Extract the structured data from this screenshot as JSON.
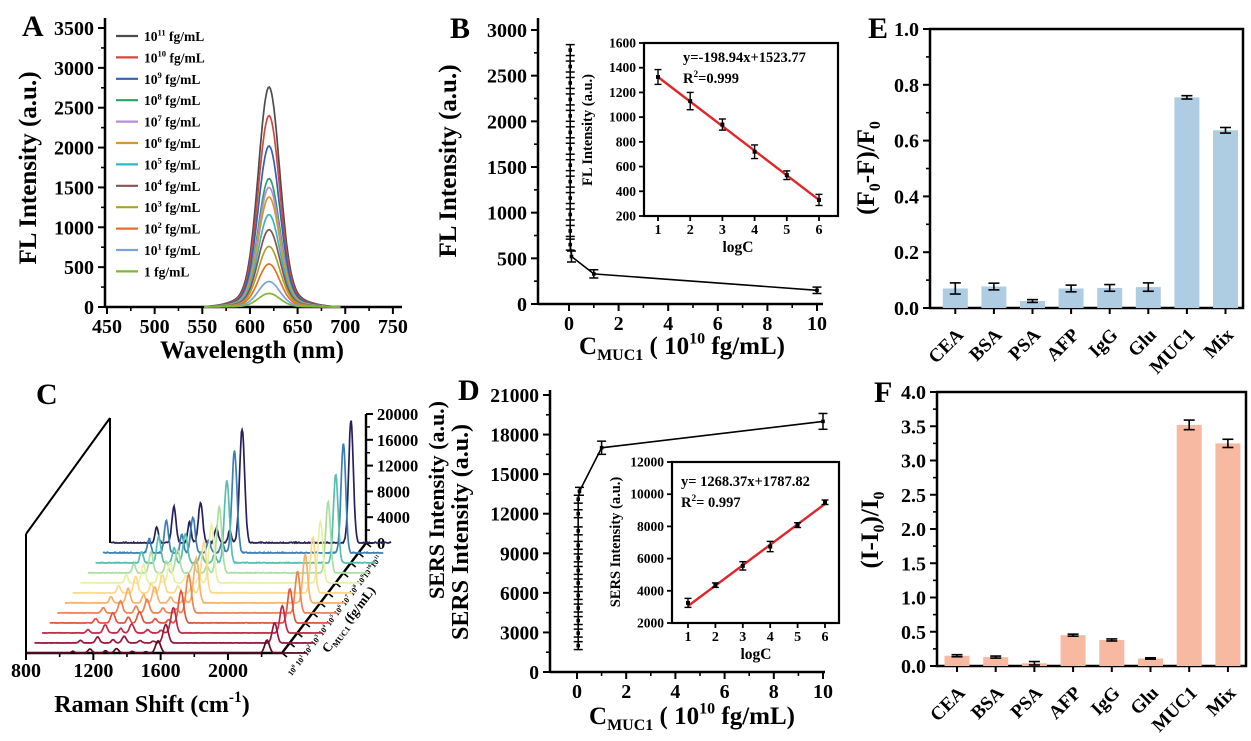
{
  "figure": {
    "background": "#ffffff",
    "text_color": "#000000"
  },
  "chart_data": [
    {
      "panel": "A",
      "type": "line",
      "xlabel": "Wavelength (nm)",
      "ylabel": "FL Intensity (a.u.)",
      "xlim": [
        450,
        750
      ],
      "xticks": [
        450,
        500,
        550,
        600,
        650,
        700,
        750
      ],
      "ylim": [
        0,
        3500
      ],
      "yticks": [
        0,
        500,
        1000,
        1500,
        2000,
        2500,
        3000,
        3500
      ],
      "peak_center_nm": 620,
      "legend_position": "upper-left",
      "series": [
        {
          "label": "10^{11} fg/mL",
          "color": "#4d4d4d",
          "peak": 2760
        },
        {
          "label": "10^{10} fg/mL",
          "color": "#d6453e",
          "peak": 2400
        },
        {
          "label": "10^{9} fg/mL",
          "color": "#3160b5",
          "peak": 2020
        },
        {
          "label": "10^{8} fg/mL",
          "color": "#2f9e68",
          "peak": 1610
        },
        {
          "label": "10^{7} fg/mL",
          "color": "#b48ede",
          "peak": 1500
        },
        {
          "label": "10^{6} fg/mL",
          "color": "#d9962b",
          "peak": 1380
        },
        {
          "label": "10^{5} fg/mL",
          "color": "#30b8c9",
          "peak": 1160
        },
        {
          "label": "10^{4} fg/mL",
          "color": "#8a5052",
          "peak": 970
        },
        {
          "label": "10^{3} fg/mL",
          "color": "#a8a32b",
          "peak": 760
        },
        {
          "label": "10^{2} fg/mL",
          "color": "#e2712d",
          "peak": 540
        },
        {
          "label": "10^{1} fg/mL",
          "color": "#7ba3d8",
          "peak": 320
        },
        {
          "label": "1 fg/mL",
          "color": "#7cb836",
          "peak": 170
        }
      ]
    },
    {
      "panel": "B",
      "type": "scatter-line",
      "xlabel": "C_{MUC1} ( 10^{10} fg/mL)",
      "ylabel": "FL Intensity (a.u.)",
      "xlim": [
        0,
        10
      ],
      "xticks": [
        0,
        2,
        4,
        6,
        8,
        10
      ],
      "ylim": [
        0,
        3000
      ],
      "yticks": [
        0,
        500,
        1000,
        1500,
        2000,
        2500,
        3000
      ],
      "line_color": "#000000",
      "points": [
        [
          0.05,
          2780
        ],
        [
          0.05,
          2600
        ],
        [
          0.05,
          2420
        ],
        [
          0.05,
          2240
        ],
        [
          0.05,
          2060
        ],
        [
          0.05,
          1880
        ],
        [
          0.05,
          1700
        ],
        [
          0.05,
          1520
        ],
        [
          0.05,
          1340
        ],
        [
          0.05,
          1160
        ],
        [
          0.05,
          980
        ],
        [
          0.05,
          800
        ],
        [
          0.05,
          650
        ],
        [
          0.1,
          520
        ],
        [
          1,
          330
        ],
        [
          10,
          150
        ]
      ],
      "yerr": [
        60,
        60,
        60,
        60,
        60,
        60,
        60,
        60,
        60,
        60,
        60,
        60,
        60,
        60,
        45,
        35
      ],
      "inset": {
        "equation": "y=-198.94x+1523.77",
        "r_squared": "R^{2}=0.999",
        "xlabel": "logC",
        "ylabel": "FL Intensity (a.u.)",
        "xlim": [
          1,
          6
        ],
        "xticks": [
          1,
          2,
          3,
          4,
          5,
          6
        ],
        "ylim": [
          200,
          1600
        ],
        "yticks": [
          200,
          400,
          600,
          800,
          1000,
          1200,
          1400,
          1600
        ],
        "points": [
          [
            1,
            1325
          ],
          [
            2,
            1130
          ],
          [
            3,
            940
          ],
          [
            4,
            720
          ],
          [
            5,
            530
          ],
          [
            6,
            330
          ]
        ],
        "yerr": [
          60,
          70,
          45,
          55,
          35,
          45
        ],
        "fit_line": [
          [
            1,
            1324.8
          ],
          [
            6,
            330.1
          ]
        ],
        "fit_color": "#e0262a"
      }
    },
    {
      "panel": "C",
      "type": "waterfall3d",
      "xlabel": "Raman Shift (cm^{-1})",
      "zlabel": "SERS Intensity (a.u.)",
      "depth_label": "C_{MUC1} (fg/mL)",
      "xlim": [
        800,
        2470
      ],
      "xticks": [
        800,
        1200,
        1600,
        2000
      ],
      "zlim": [
        0,
        20000
      ],
      "zticks": [
        0,
        4000,
        8000,
        12000,
        16000,
        20000
      ],
      "peaks": [
        {
          "center": 1078,
          "rel": 0.13,
          "width": 10
        },
        {
          "center": 1180,
          "rel": 0.3,
          "width": 12
        },
        {
          "center": 1272,
          "rel": 0.17,
          "width": 10
        },
        {
          "center": 1338,
          "rel": 0.33,
          "width": 13
        },
        {
          "center": 1432,
          "rel": 0.12,
          "width": 11
        },
        {
          "center": 1512,
          "rel": 0.1,
          "width": 10
        },
        {
          "center": 1585,
          "rel": 0.93,
          "width": 15
        },
        {
          "center": 2232,
          "rel": 1.0,
          "width": 14
        }
      ],
      "series": [
        {
          "label": "10^{0}",
          "color": "#5E0823",
          "amp": 2000
        },
        {
          "label": "10^{1}",
          "color": "#97173B",
          "amp": 3100
        },
        {
          "label": "10^{2}",
          "color": "#C02A45",
          "amp": 4200
        },
        {
          "label": "10^{3}",
          "color": "#E2543E",
          "amp": 5300
        },
        {
          "label": "10^{4}",
          "color": "#F08150",
          "amp": 6400
        },
        {
          "label": "10^{5}",
          "color": "#F9B168",
          "amp": 7500
        },
        {
          "label": "10^{6}",
          "color": "#FBD987",
          "amp": 8600
        },
        {
          "label": "10^{7}",
          "color": "#E9F0A3",
          "amp": 9700
        },
        {
          "label": "10^{8}",
          "color": "#AADFA2",
          "amp": 11000
        },
        {
          "label": "10^{9}",
          "color": "#56BFAE",
          "amp": 13700
        },
        {
          "label": "10^{10}",
          "color": "#3C7FB6",
          "amp": 17000
        },
        {
          "label": "10^{11}",
          "color": "#27215B",
          "amp": 19000
        }
      ]
    },
    {
      "panel": "D",
      "type": "scatter-line",
      "xlabel": "C_{MUC1} ( 10^{10} fg/mL)",
      "ylabel": "SERS Intensity (a.u.)",
      "xlim": [
        0,
        10
      ],
      "xticks": [
        0,
        2,
        4,
        6,
        8,
        10
      ],
      "ylim": [
        0,
        21000
      ],
      "yticks": [
        0,
        3000,
        6000,
        9000,
        12000,
        15000,
        18000,
        21000
      ],
      "line_color": "#000000",
      "points": [
        [
          0.05,
          2000
        ],
        [
          0.05,
          2950
        ],
        [
          0.05,
          3900
        ],
        [
          0.05,
          4850
        ],
        [
          0.05,
          5800
        ],
        [
          0.05,
          6750
        ],
        [
          0.05,
          7700
        ],
        [
          0.05,
          8650
        ],
        [
          0.05,
          9600
        ],
        [
          0.05,
          10700
        ],
        [
          0.05,
          12000
        ],
        [
          0.05,
          13100
        ],
        [
          0.1,
          13700
        ],
        [
          1,
          17000
        ],
        [
          10,
          19000
        ]
      ],
      "yerr": [
        300,
        300,
        300,
        300,
        300,
        300,
        300,
        300,
        300,
        300,
        300,
        300,
        300,
        500,
        600
      ],
      "inset": {
        "equation": "y= 1268.37x+1787.82",
        "r_squared": "R^{2}= 0.997",
        "xlabel": "logC",
        "ylabel": "SERS Intensity (a.u.)",
        "xlim": [
          1,
          6
        ],
        "xticks": [
          1,
          2,
          3,
          4,
          5,
          6
        ],
        "ylim": [
          2000,
          12000
        ],
        "yticks": [
          2000,
          4000,
          6000,
          8000,
          10000,
          12000
        ],
        "points": [
          [
            1,
            3250
          ],
          [
            2,
            4350
          ],
          [
            3,
            5550
          ],
          [
            4,
            6750
          ],
          [
            5,
            8080
          ],
          [
            6,
            9500
          ]
        ],
        "yerr": [
          280,
          140,
          260,
          320,
          150,
          140
        ],
        "fit_line": [
          [
            1,
            3056.2
          ],
          [
            6,
            9398.0
          ]
        ],
        "fit_color": "#e0262a"
      }
    },
    {
      "panel": "E",
      "type": "bar",
      "ylabel": "(F_{0}-F)/F_{0}",
      "categories": [
        "CEA",
        "BSA",
        "PSA",
        "AFP",
        "IgG",
        "Glu",
        "MUC1",
        "Mix"
      ],
      "values": [
        0.07,
        0.077,
        0.025,
        0.07,
        0.072,
        0.075,
        0.755,
        0.637
      ],
      "errors": [
        0.02,
        0.012,
        0.005,
        0.012,
        0.012,
        0.015,
        0.006,
        0.01
      ],
      "bar_color": "#aecde3",
      "ylim": [
        0,
        1.0
      ],
      "ytick_step": 0.2
    },
    {
      "panel": "F",
      "type": "bar",
      "ylabel": "(I-I_{0})/I_{0}",
      "categories": [
        "CEA",
        "BSA",
        "PSA",
        "AFP",
        "IgG",
        "Glu",
        "MUC1",
        "Mix"
      ],
      "values": [
        0.15,
        0.13,
        0.04,
        0.45,
        0.38,
        0.11,
        3.52,
        3.25
      ],
      "errors": [
        0.015,
        0.015,
        0.025,
        0.015,
        0.015,
        0.01,
        0.07,
        0.06
      ],
      "bar_color": "#f8b9a2",
      "ylim": [
        0,
        4.0
      ],
      "ytick_step": 0.5
    }
  ]
}
